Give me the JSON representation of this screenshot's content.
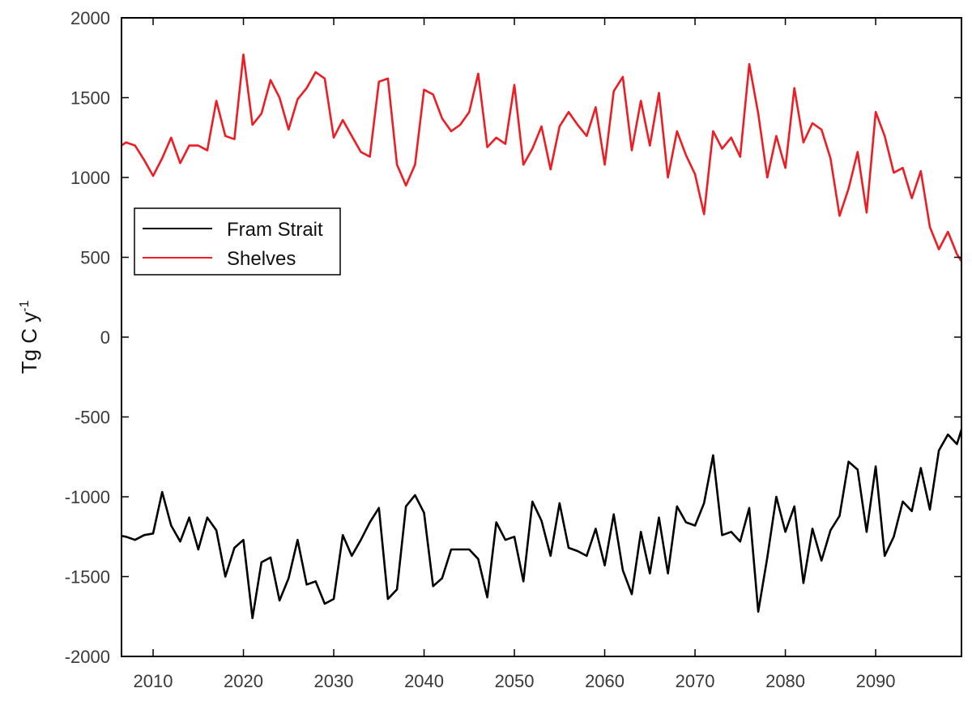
{
  "chart_data": {
    "type": "line",
    "title": "",
    "xlabel": "",
    "ylabel": "Tg C y",
    "ylabel_superscript": "-1",
    "xlim": [
      2006.5,
      2099.5
    ],
    "ylim": [
      -2000,
      2000
    ],
    "xticks": [
      2010,
      2020,
      2030,
      2040,
      2050,
      2060,
      2070,
      2080,
      2090
    ],
    "yticks": [
      -2000,
      -1500,
      -1000,
      -500,
      0,
      500,
      1000,
      1500,
      2000
    ],
    "grid": false,
    "legend": {
      "placement": "middle-left"
    },
    "x": [
      2006,
      2007,
      2008,
      2009,
      2010,
      2011,
      2012,
      2013,
      2014,
      2015,
      2016,
      2017,
      2018,
      2019,
      2020,
      2021,
      2022,
      2023,
      2024,
      2025,
      2026,
      2027,
      2028,
      2029,
      2030,
      2031,
      2032,
      2033,
      2034,
      2035,
      2036,
      2037,
      2038,
      2039,
      2040,
      2041,
      2042,
      2043,
      2044,
      2045,
      2046,
      2047,
      2048,
      2049,
      2050,
      2051,
      2052,
      2053,
      2054,
      2055,
      2056,
      2057,
      2058,
      2059,
      2060,
      2061,
      2062,
      2063,
      2064,
      2065,
      2066,
      2067,
      2068,
      2069,
      2070,
      2071,
      2072,
      2073,
      2074,
      2075,
      2076,
      2077,
      2078,
      2079,
      2080,
      2081,
      2082,
      2083,
      2084,
      2085,
      2086,
      2087,
      2088,
      2089,
      2090,
      2091,
      2092,
      2093,
      2094,
      2095,
      2096,
      2097,
      2098,
      2099,
      2100
    ],
    "series": [
      {
        "name": "Fram Strait",
        "color": "#000000",
        "values": [
          -1240,
          -1250,
          -1270,
          -1240,
          -1230,
          -970,
          -1180,
          -1280,
          -1130,
          -1330,
          -1130,
          -1210,
          -1500,
          -1320,
          -1270,
          -1760,
          -1410,
          -1380,
          -1650,
          -1510,
          -1270,
          -1550,
          -1530,
          -1670,
          -1640,
          -1240,
          -1370,
          -1270,
          -1160,
          -1070,
          -1640,
          -1580,
          -1060,
          -990,
          -1100,
          -1560,
          -1510,
          -1330,
          -1330,
          -1330,
          -1390,
          -1630,
          -1160,
          -1270,
          -1250,
          -1530,
          -1030,
          -1150,
          -1370,
          -1040,
          -1320,
          -1340,
          -1370,
          -1200,
          -1430,
          -1110,
          -1460,
          -1610,
          -1220,
          -1480,
          -1130,
          -1480,
          -1060,
          -1160,
          -1180,
          -1040,
          -740,
          -1240,
          -1220,
          -1280,
          -1070,
          -1720,
          -1380,
          -1000,
          -1220,
          -1060,
          -1540,
          -1200,
          -1400,
          -1210,
          -1120,
          -780,
          -830,
          -1220,
          -810,
          -1370,
          -1250,
          -1030,
          -1090,
          -820,
          -1080,
          -710,
          -610,
          -670,
          -490
        ]
      },
      {
        "name": "Shelves",
        "color": "#ee1c23",
        "values": [
          1180,
          1220,
          1200,
          1110,
          1010,
          1120,
          1250,
          1090,
          1200,
          1200,
          1170,
          1480,
          1260,
          1240,
          1770,
          1330,
          1400,
          1610,
          1500,
          1300,
          1490,
          1560,
          1660,
          1620,
          1250,
          1360,
          1260,
          1160,
          1130,
          1600,
          1620,
          1080,
          950,
          1080,
          1550,
          1520,
          1370,
          1290,
          1330,
          1410,
          1650,
          1190,
          1250,
          1210,
          1580,
          1080,
          1180,
          1320,
          1050,
          1320,
          1410,
          1330,
          1260,
          1440,
          1080,
          1540,
          1630,
          1170,
          1480,
          1200,
          1530,
          1000,
          1290,
          1140,
          1020,
          770,
          1290,
          1180,
          1250,
          1130,
          1710,
          1400,
          1000,
          1260,
          1060,
          1560,
          1220,
          1340,
          1300,
          1120,
          760,
          930,
          1160,
          780,
          1410,
          1260,
          1030,
          1060,
          870,
          1040,
          690,
          550,
          660,
          520,
          430
        ]
      }
    ]
  }
}
